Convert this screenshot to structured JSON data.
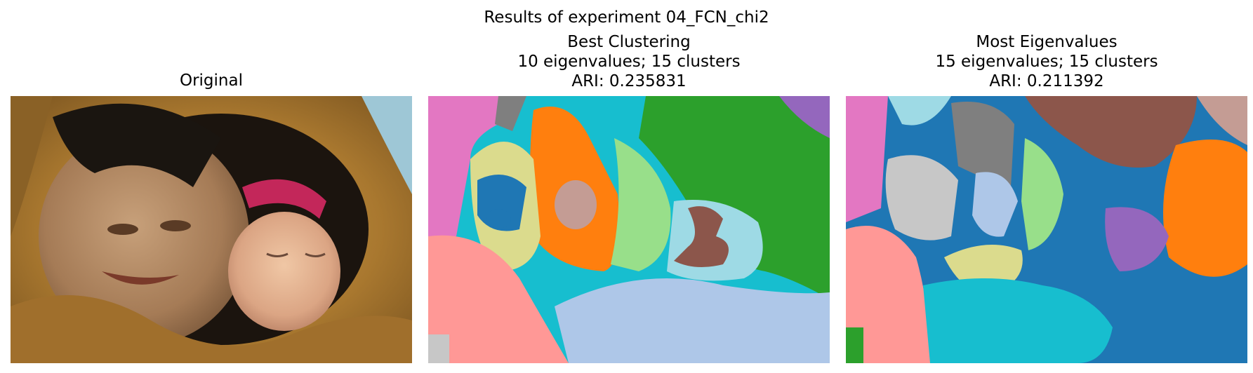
{
  "figure": {
    "suptitle": "Results of experiment 04_FCN_chi2"
  },
  "panels": [
    {
      "title_lines": [
        "Original"
      ],
      "image": "photo of an elderly woman and a baby wrapped in fur-trimmed hoods"
    },
    {
      "title_lines": [
        "Best Clustering",
        "10 eigenvalues; 15 clusters",
        "ARI: 0.235831"
      ],
      "image": "segmentation map"
    },
    {
      "title_lines": [
        "Most Eigenvalues",
        "15 eigenvalues; 15 clusters",
        "ARI: 0.211392"
      ],
      "image": "segmentation map"
    }
  ],
  "palette": {
    "blue": "#1f77b4",
    "orange": "#ff7f0e",
    "green": "#2ca02c",
    "red": "#d62728",
    "purple": "#9467bd",
    "brown": "#8c564b",
    "pink": "#e377c2",
    "gray": "#7f7f7f",
    "olive": "#dbdb8d",
    "cyan": "#17becf",
    "lightblue": "#aec7e8",
    "lightgreen": "#98df8a",
    "salmon": "#ff9896",
    "lightgray": "#c7c7c7",
    "rosybrown": "#c49c94",
    "palecyan": "#9edae5"
  }
}
